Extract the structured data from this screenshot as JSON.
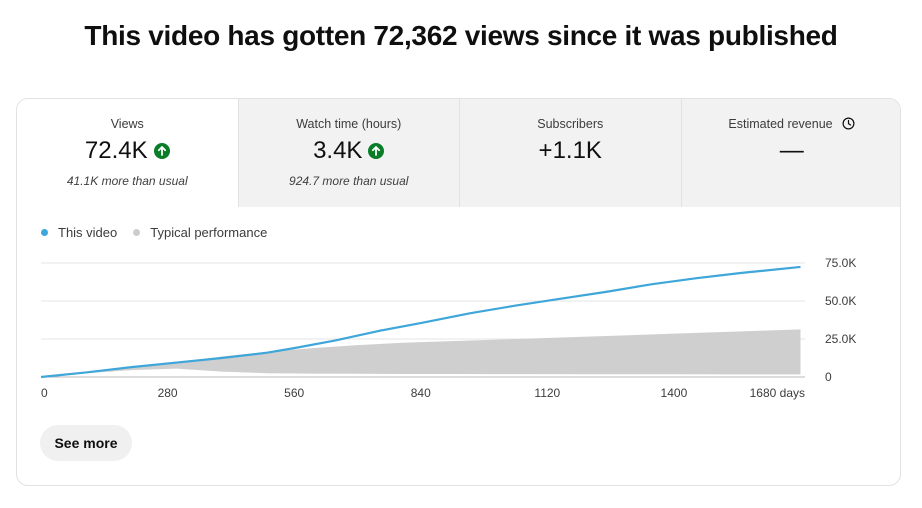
{
  "headline": "This video has gotten 72,362 views since it was published",
  "metrics": [
    {
      "label": "Views",
      "value": "72.4K",
      "note": "41.1K more than usual",
      "trend_icon": "arrow-up-circle-icon"
    },
    {
      "label": "Watch time (hours)",
      "value": "3.4K",
      "note": "924.7 more than usual",
      "trend_icon": "arrow-up-circle-icon"
    },
    {
      "label": "Subscribers",
      "value": "+1.1K",
      "note": ""
    },
    {
      "label": "Estimated revenue",
      "value": "—",
      "note": "",
      "label_icon": "clock-icon"
    }
  ],
  "legend": [
    {
      "label": "This video",
      "color": "#3ea6d9"
    },
    {
      "label": "Typical performance",
      "color": "#cccccc"
    }
  ],
  "see_more_label": "See more",
  "colors": {
    "up_green": "#0a7d28",
    "line": "#3ea6d9",
    "band": "#cccccc",
    "selected_tab": "#ffffff",
    "tab_bg": "#f2f2f2"
  },
  "chart_data": {
    "type": "line",
    "x_unit": "days",
    "xlim": [
      0,
      1690
    ],
    "ylim": [
      0,
      75000
    ],
    "x_ticks": [
      0,
      280,
      560,
      840,
      1120,
      1400,
      1680
    ],
    "x_tick_labels": [
      "0",
      "280",
      "560",
      "840",
      "1120",
      "1400",
      "1680 days"
    ],
    "y_ticks": [
      0,
      25000,
      50000,
      75000
    ],
    "y_tick_labels": [
      "0",
      "25.0K",
      "50.0K",
      "75.0K"
    ],
    "grid": true,
    "series": [
      {
        "name": "This video",
        "x": [
          0,
          100,
          200,
          300,
          400,
          500,
          560,
          650,
          750,
          840,
          950,
          1050,
          1150,
          1250,
          1350,
          1450,
          1550,
          1680
        ],
        "values": [
          0,
          3000,
          6500,
          9500,
          12500,
          16000,
          19000,
          24000,
          30500,
          35500,
          42000,
          47000,
          51500,
          56000,
          61000,
          65000,
          68500,
          72400
        ]
      }
    ],
    "band": {
      "name": "Typical performance",
      "x": [
        0,
        100,
        200,
        300,
        400,
        500,
        600,
        700,
        800,
        900,
        1000,
        1100,
        1200,
        1300,
        1400,
        1500,
        1600,
        1680
      ],
      "upper": [
        0,
        3000,
        6000,
        9500,
        13500,
        16500,
        19000,
        21000,
        22500,
        23500,
        24500,
        25500,
        26500,
        27500,
        28500,
        29500,
        30500,
        31300
      ],
      "lower": [
        0,
        2500,
        4500,
        5500,
        3500,
        2500,
        2200,
        2100,
        2000,
        2000,
        1900,
        1900,
        1800,
        1800,
        1800,
        1700,
        1700,
        1700
      ]
    }
  }
}
